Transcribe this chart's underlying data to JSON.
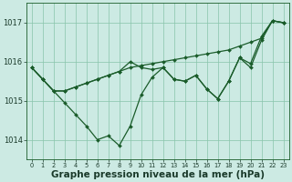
{
  "background_color": "#cceae3",
  "grid_color": "#88c4aa",
  "line_color": "#1a5c2a",
  "marker_color": "#1a5c2a",
  "xlabel": "Graphe pression niveau de la mer (hPa)",
  "xlabel_fontsize": 7.5,
  "ylim": [
    1013.5,
    1017.5
  ],
  "xlim": [
    -0.5,
    23.5
  ],
  "yticks": [
    1014,
    1015,
    1016,
    1017
  ],
  "xticks": [
    0,
    1,
    2,
    3,
    4,
    5,
    6,
    7,
    8,
    9,
    10,
    11,
    12,
    13,
    14,
    15,
    16,
    17,
    18,
    19,
    20,
    21,
    22,
    23
  ],
  "s1": [
    1015.85,
    1015.55,
    1015.25,
    1014.95,
    1014.65,
    1014.35,
    1014.0,
    1014.1,
    1013.85,
    1014.35,
    1015.15,
    1015.6,
    1015.85,
    1015.55,
    1015.5,
    1015.65,
    1015.3,
    1015.05,
    1015.5,
    1016.1,
    1015.95,
    1016.65,
    1017.05,
    1017.0
  ],
  "s2": [
    1015.85,
    1015.55,
    1015.25,
    1015.25,
    1015.35,
    1015.45,
    1015.55,
    1015.65,
    1015.75,
    1015.85,
    1015.9,
    1015.95,
    1016.0,
    1016.05,
    1016.1,
    1016.15,
    1016.2,
    1016.25,
    1016.3,
    1016.4,
    1016.5,
    1016.6,
    1017.05,
    1017.0
  ],
  "s3": [
    1015.85,
    1015.55,
    1015.25,
    1015.25,
    1015.35,
    1015.45,
    1015.55,
    1015.65,
    1015.75,
    1016.0,
    1015.85,
    1015.8,
    1015.85,
    1015.55,
    1015.5,
    1015.65,
    1015.3,
    1015.05,
    1015.5,
    1016.1,
    1015.85,
    1016.55,
    1017.05,
    1017.0
  ]
}
